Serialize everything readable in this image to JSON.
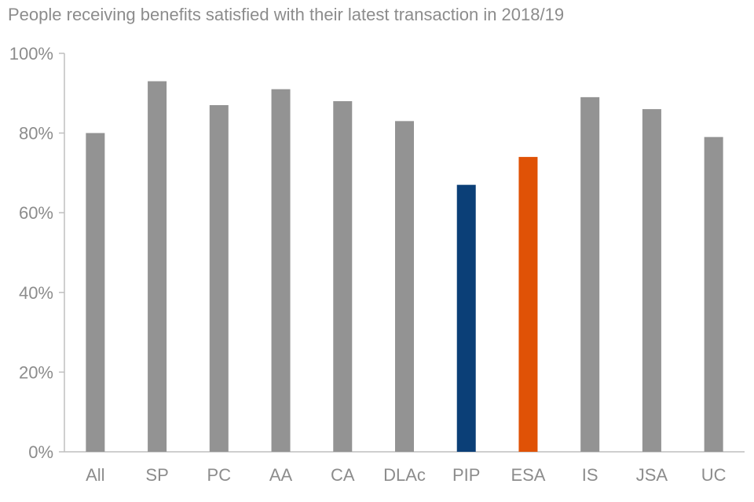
{
  "chart_data": {
    "type": "bar",
    "title": "People receiving benefits satisfied with their latest transaction in 2018/19",
    "xlabel": "",
    "ylabel": "",
    "ylim": [
      0,
      100
    ],
    "yticks": [
      0,
      20,
      40,
      60,
      80,
      100
    ],
    "ytick_labels": [
      "0%",
      "20%",
      "40%",
      "60%",
      "80%",
      "100%"
    ],
    "grid": false,
    "legend": "none",
    "categories": [
      "All",
      "SP",
      "PC",
      "AA",
      "CA",
      "DLAc",
      "PIP",
      "ESA",
      "IS",
      "JSA",
      "UC"
    ],
    "values": [
      80,
      93,
      87,
      91,
      88,
      83,
      67,
      74,
      89,
      86,
      79
    ],
    "colors": [
      "#939393",
      "#939393",
      "#939393",
      "#939393",
      "#939393",
      "#939393",
      "#0b3f77",
      "#e05206",
      "#939393",
      "#939393",
      "#939393"
    ],
    "axis_color": "#bfbfbf",
    "text_color": "#8c8c8c"
  }
}
